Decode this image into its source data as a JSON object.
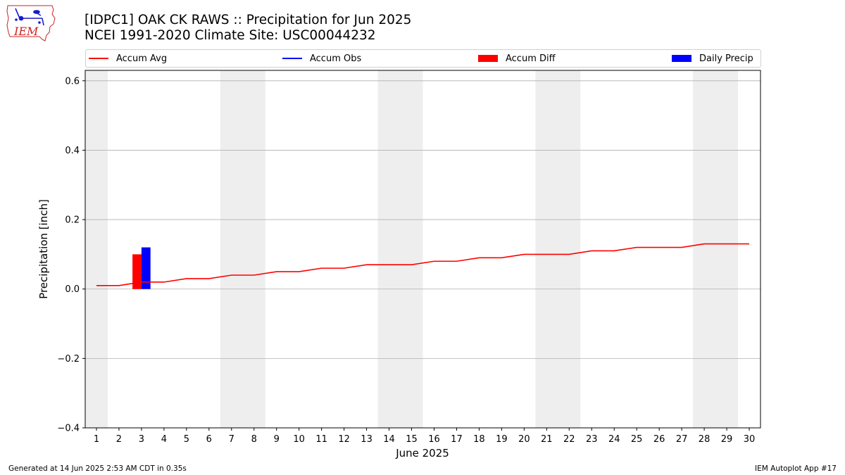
{
  "logo": {
    "text": "IEM",
    "outline_color": "#cc2222",
    "mark_color": "#1a1acc",
    "icon": "iowa-state-outline-weather-icon"
  },
  "header": {
    "title_line1": "[IDPC1] OAK CK RAWS :: Precipitation for Jun 2025",
    "title_line2": "NCEI 1991-2020 Climate Site: USC00044232"
  },
  "legend": {
    "accum_avg": "Accum Avg",
    "accum_obs": "Accum Obs",
    "accum_diff": "Accum Diff",
    "daily_precip": "Daily Precip"
  },
  "footer": {
    "generated": "Generated at 14 Jun 2025 2:53 AM CDT in 0.35s",
    "app": "IEM Autoplot App #17"
  },
  "chart_data": {
    "type": "bar",
    "xlabel": "June 2025",
    "ylabel": "Precipitation [inch]",
    "ylim": [
      -0.4,
      0.63
    ],
    "yticks": [
      -0.4,
      -0.2,
      0.0,
      0.2,
      0.4,
      0.6
    ],
    "ytick_labels": [
      "−0.4",
      "−0.2",
      "0.0",
      "0.2",
      "0.4",
      "0.6"
    ],
    "xlim": [
      0.5,
      30.5
    ],
    "x": [
      1,
      2,
      3,
      4,
      5,
      6,
      7,
      8,
      9,
      10,
      11,
      12,
      13,
      14,
      15,
      16,
      17,
      18,
      19,
      20,
      21,
      22,
      23,
      24,
      25,
      26,
      27,
      28,
      29,
      30
    ],
    "x_tick_labels": [
      "1",
      "2",
      "3",
      "4",
      "5",
      "6",
      "7",
      "8",
      "9",
      "10",
      "11",
      "12",
      "13",
      "14",
      "15",
      "16",
      "17",
      "18",
      "19",
      "20",
      "21",
      "22",
      "23",
      "24",
      "25",
      "26",
      "27",
      "28",
      "29",
      "30"
    ],
    "weekend_shading": [
      [
        0.5,
        1.5
      ],
      [
        6.5,
        8.5
      ],
      [
        13.5,
        15.5
      ],
      [
        20.5,
        22.5
      ],
      [
        27.5,
        29.5
      ]
    ],
    "grid": "y",
    "legend_position": "top",
    "colors": {
      "accum_avg": "#ff0000",
      "accum_obs": "#0000ff",
      "accum_diff": "#ff0000",
      "daily_precip": "#0000ff",
      "shade": "#eeeeee",
      "grid": "#b0b0b0"
    },
    "series": [
      {
        "name": "Accum Avg",
        "kind": "line",
        "values": [
          0.01,
          0.01,
          0.02,
          0.02,
          0.03,
          0.03,
          0.04,
          0.04,
          0.05,
          0.05,
          0.06,
          0.06,
          0.07,
          0.07,
          0.07,
          0.08,
          0.08,
          0.09,
          0.09,
          0.1,
          0.1,
          0.1,
          0.11,
          0.11,
          0.12,
          0.12,
          0.12,
          0.13,
          0.13,
          0.13
        ]
      },
      {
        "name": "Accum Diff",
        "kind": "bar",
        "x": [
          3
        ],
        "values": [
          0.1
        ]
      },
      {
        "name": "Daily Precip",
        "kind": "bar",
        "x": [
          3
        ],
        "values": [
          0.12
        ]
      }
    ]
  }
}
